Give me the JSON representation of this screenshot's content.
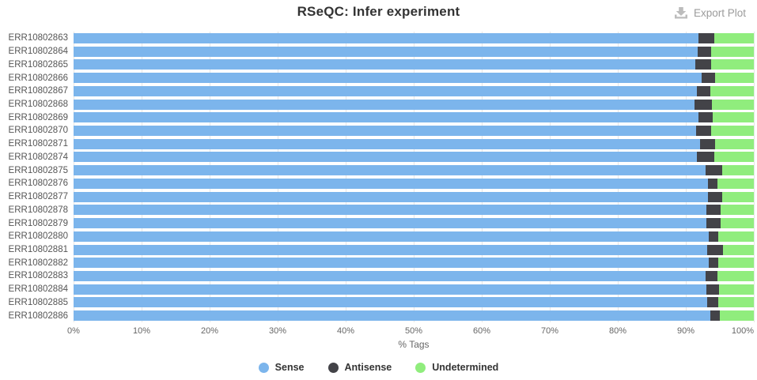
{
  "header": {
    "title": "RSeQC: Infer experiment",
    "export_label": "Export Plot"
  },
  "chart_data": {
    "type": "bar",
    "orientation": "horizontal_stacked_percent",
    "title": "RSeQC: Infer experiment",
    "xlabel": "% Tags",
    "xlim": [
      0,
      100
    ],
    "x_ticks": [
      "0%",
      "10%",
      "20%",
      "30%",
      "40%",
      "50%",
      "60%",
      "70%",
      "80%",
      "90%",
      "100%"
    ],
    "grid": true,
    "gridline_color": "#e6e6e6",
    "legend_position": "bottom",
    "categories": [
      "ERR10802863",
      "ERR10802864",
      "ERR10802865",
      "ERR10802866",
      "ERR10802867",
      "ERR10802868",
      "ERR10802869",
      "ERR10802870",
      "ERR10802871",
      "ERR10802874",
      "ERR10802875",
      "ERR10802876",
      "ERR10802877",
      "ERR10802878",
      "ERR10802879",
      "ERR10802880",
      "ERR10802881",
      "ERR10802882",
      "ERR10802883",
      "ERR10802884",
      "ERR10802885",
      "ERR10802886"
    ],
    "series": [
      {
        "name": "Sense",
        "color": "#7cb5ec",
        "values": [
          91.9,
          91.8,
          91.4,
          92.3,
          91.6,
          91.3,
          91.9,
          91.5,
          92.1,
          91.6,
          92.9,
          93.2,
          93.2,
          93.0,
          93.0,
          93.4,
          93.1,
          93.4,
          92.9,
          93.0,
          93.1,
          93.6
        ]
      },
      {
        "name": "Antisense",
        "color": "#434348",
        "values": [
          2.3,
          1.9,
          2.3,
          2.0,
          2.0,
          2.5,
          2.1,
          2.2,
          2.2,
          2.6,
          2.5,
          1.5,
          2.1,
          2.1,
          2.1,
          1.4,
          2.4,
          1.4,
          1.7,
          1.9,
          1.7,
          1.4
        ]
      },
      {
        "name": "Undetermined",
        "color": "#90ed7d",
        "values": [
          5.8,
          6.3,
          6.3,
          5.7,
          6.4,
          6.2,
          6.0,
          6.3,
          5.7,
          5.8,
          4.6,
          5.3,
          4.7,
          4.9,
          4.9,
          5.2,
          4.5,
          5.2,
          5.4,
          5.1,
          5.2,
          5.0
        ]
      }
    ]
  }
}
